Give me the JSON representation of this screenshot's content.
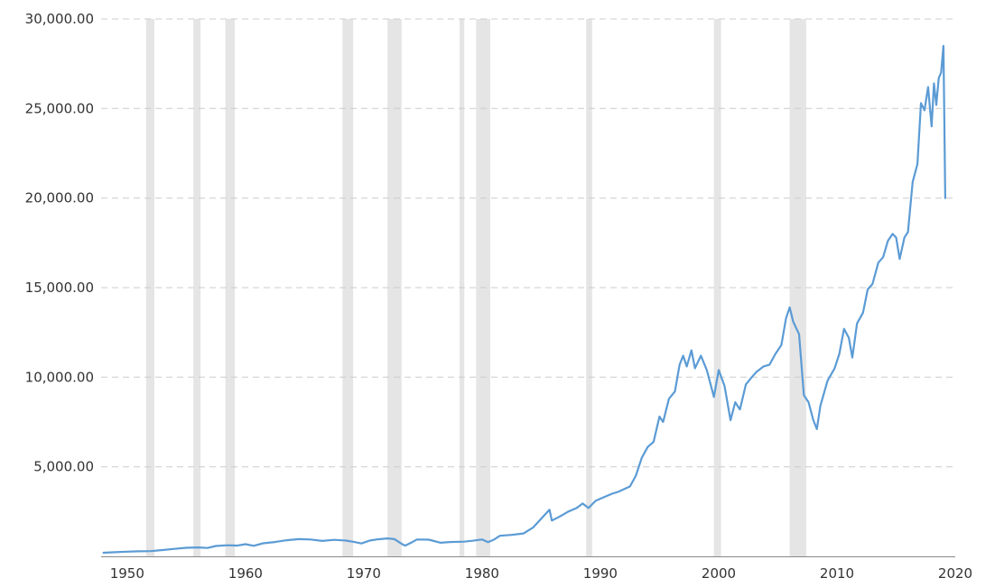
{
  "chart_data": {
    "type": "line",
    "title": "",
    "xlabel": "",
    "ylabel": "",
    "xlim": [
      1947.8,
      2020
    ],
    "ylim": [
      0,
      30000
    ],
    "grid": "horizontal-dashed",
    "colors": {
      "line": "#5b9bd5",
      "band": "#e5e5e5",
      "grid": "#cccccc",
      "text": "#333333"
    },
    "y_ticks": [
      {
        "value": 5000,
        "label": "5,000.00"
      },
      {
        "value": 10000,
        "label": "10,000.00"
      },
      {
        "value": 15000,
        "label": "15,000.00"
      },
      {
        "value": 20000,
        "label": "20,000.00"
      },
      {
        "value": 25000,
        "label": "25,000.00"
      },
      {
        "value": 30000,
        "label": "30,000.00"
      }
    ],
    "x_ticks": [
      {
        "value": 1950,
        "label": "1950"
      },
      {
        "value": 1960,
        "label": "1960"
      },
      {
        "value": 1970,
        "label": "1970"
      },
      {
        "value": 1980,
        "label": "1980"
      },
      {
        "value": 1990,
        "label": "1990"
      },
      {
        "value": 2000,
        "label": "2000"
      },
      {
        "value": 2010,
        "label": "2010"
      },
      {
        "value": 2020,
        "label": "2020"
      }
    ],
    "recession_bands": [
      [
        1951.6,
        1952.3
      ],
      [
        1955.6,
        1956.2
      ],
      [
        1958.3,
        1959.1
      ],
      [
        1968.2,
        1969.1
      ],
      [
        1972.0,
        1973.2
      ],
      [
        1978.1,
        1978.5
      ],
      [
        1979.5,
        1980.7
      ],
      [
        1988.8,
        1989.3
      ],
      [
        1999.6,
        2000.2
      ],
      [
        2006.0,
        2007.4
      ]
    ],
    "series": [
      {
        "values": [
          [
            1948.0,
            200
          ],
          [
            1949.0,
            230
          ],
          [
            1950.0,
            260
          ],
          [
            1951.0,
            280
          ],
          [
            1952.0,
            290
          ],
          [
            1953.0,
            350
          ],
          [
            1954.0,
            420
          ],
          [
            1955.0,
            480
          ],
          [
            1956.0,
            500
          ],
          [
            1956.8,
            470
          ],
          [
            1957.5,
            580
          ],
          [
            1958.5,
            620
          ],
          [
            1959.3,
            600
          ],
          [
            1960.0,
            680
          ],
          [
            1960.7,
            590
          ],
          [
            1961.5,
            730
          ],
          [
            1962.5,
            800
          ],
          [
            1963.5,
            900
          ],
          [
            1964.5,
            960
          ],
          [
            1965.5,
            940
          ],
          [
            1966.5,
            860
          ],
          [
            1967.5,
            920
          ],
          [
            1968.5,
            880
          ],
          [
            1969.2,
            800
          ],
          [
            1969.8,
            720
          ],
          [
            1970.5,
            880
          ],
          [
            1971.2,
            950
          ],
          [
            1972.0,
            1000
          ],
          [
            1972.6,
            960
          ],
          [
            1973.2,
            700
          ],
          [
            1973.5,
            600
          ],
          [
            1974.0,
            760
          ],
          [
            1974.5,
            940
          ],
          [
            1975.5,
            930
          ],
          [
            1976.5,
            760
          ],
          [
            1977.3,
            800
          ],
          [
            1978.5,
            820
          ],
          [
            1979.2,
            870
          ],
          [
            1980.0,
            940
          ],
          [
            1980.5,
            790
          ],
          [
            1981.0,
            930
          ],
          [
            1981.5,
            1150
          ],
          [
            1982.5,
            1200
          ],
          [
            1983.5,
            1280
          ],
          [
            1984.3,
            1600
          ],
          [
            1985.0,
            2100
          ],
          [
            1985.7,
            2600
          ],
          [
            1985.9,
            2000
          ],
          [
            1986.5,
            2200
          ],
          [
            1987.3,
            2500
          ],
          [
            1988.0,
            2700
          ],
          [
            1988.5,
            2950
          ],
          [
            1989.0,
            2700
          ],
          [
            1989.6,
            3100
          ],
          [
            1990.3,
            3300
          ],
          [
            1991.0,
            3500
          ],
          [
            1991.5,
            3600
          ],
          [
            1992.0,
            3750
          ],
          [
            1992.5,
            3900
          ],
          [
            1993.0,
            4500
          ],
          [
            1993.5,
            5500
          ],
          [
            1994.0,
            6100
          ],
          [
            1994.5,
            6400
          ],
          [
            1995.0,
            7800
          ],
          [
            1995.3,
            7500
          ],
          [
            1995.8,
            8800
          ],
          [
            1996.3,
            9200
          ],
          [
            1996.7,
            10700
          ],
          [
            1997.0,
            11200
          ],
          [
            1997.3,
            10600
          ],
          [
            1997.7,
            11500
          ],
          [
            1998.0,
            10500
          ],
          [
            1998.5,
            11200
          ],
          [
            1999.0,
            10400
          ],
          [
            1999.6,
            8900
          ],
          [
            2000.0,
            10400
          ],
          [
            2000.5,
            9500
          ],
          [
            2001.0,
            7600
          ],
          [
            2001.4,
            8600
          ],
          [
            2001.8,
            8200
          ],
          [
            2002.3,
            9600
          ],
          [
            2002.8,
            10000
          ],
          [
            2003.2,
            10300
          ],
          [
            2003.8,
            10600
          ],
          [
            2004.3,
            10700
          ],
          [
            2004.8,
            11300
          ],
          [
            2005.3,
            11800
          ],
          [
            2005.7,
            13300
          ],
          [
            2006.0,
            13900
          ],
          [
            2006.3,
            13100
          ],
          [
            2006.8,
            12400
          ],
          [
            2007.2,
            9000
          ],
          [
            2007.6,
            8600
          ],
          [
            2008.0,
            7600
          ],
          [
            2008.3,
            7100
          ],
          [
            2008.6,
            8400
          ],
          [
            2009.2,
            9800
          ],
          [
            2009.8,
            10500
          ],
          [
            2010.2,
            11300
          ],
          [
            2010.6,
            12700
          ],
          [
            2011.0,
            12200
          ],
          [
            2011.3,
            11100
          ],
          [
            2011.7,
            13000
          ],
          [
            2012.2,
            13600
          ],
          [
            2012.6,
            14900
          ],
          [
            2013.0,
            15200
          ],
          [
            2013.5,
            16400
          ],
          [
            2013.9,
            16700
          ],
          [
            2014.3,
            17600
          ],
          [
            2014.7,
            18000
          ],
          [
            2015.0,
            17800
          ],
          [
            2015.3,
            16600
          ],
          [
            2015.7,
            17800
          ],
          [
            2016.0,
            18100
          ],
          [
            2016.4,
            20900
          ],
          [
            2016.8,
            21900
          ],
          [
            2017.1,
            25300
          ],
          [
            2017.4,
            24900
          ],
          [
            2017.7,
            26200
          ],
          [
            2018.0,
            24000
          ],
          [
            2018.2,
            26400
          ],
          [
            2018.4,
            25200
          ],
          [
            2018.6,
            26700
          ],
          [
            2018.8,
            27000
          ],
          [
            2019.0,
            28500
          ],
          [
            2019.15,
            20000
          ]
        ]
      }
    ]
  }
}
